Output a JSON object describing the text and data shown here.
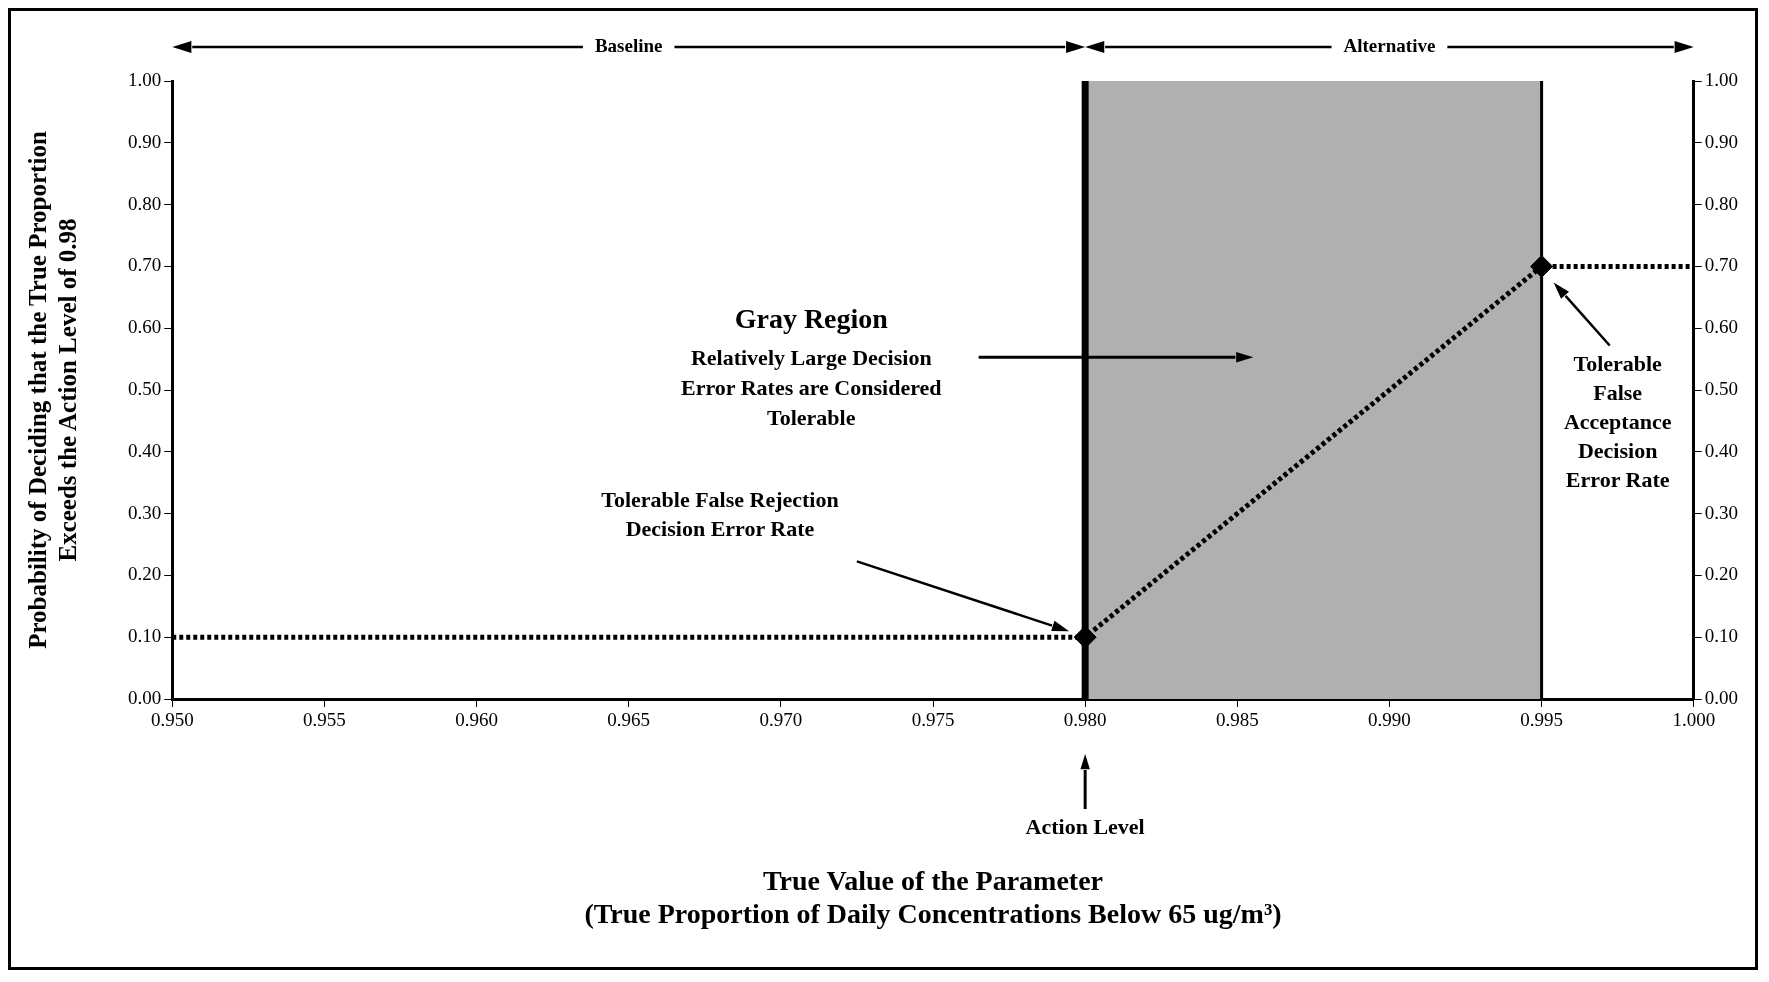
{
  "chart_data": {
    "type": "line",
    "xlabel": "True Value of the Parameter\n(True Proportion of Daily Concentrations Below 65 ug/m³)",
    "ylabel": "Probability of Deciding that the True Proportion\nExceeds the Action Level of 0.98",
    "series": [
      {
        "color": "#000000",
        "x": [
          0.95,
          0.98,
          0.995,
          1.0
        ],
        "values": [
          0.1,
          0.1,
          0.7,
          0.7
        ],
        "marker": "none",
        "line_style": "dotted"
      },
      {
        "type": "scatter",
        "color": "#000000",
        "x": [
          0.98,
          0.995
        ],
        "values": [
          0.1,
          0.7
        ],
        "marker": "diamond"
      }
    ],
    "xlim": [
      0.95,
      1.0
    ],
    "xticks": [
      {
        "value": 0.95,
        "label": "0.950"
      },
      {
        "value": 0.955,
        "label": "0.955"
      },
      {
        "value": 0.96,
        "label": "0.960"
      },
      {
        "value": 0.965,
        "label": "0.965"
      },
      {
        "value": 0.97,
        "label": "0.970"
      },
      {
        "value": 0.975,
        "label": "0.975"
      },
      {
        "value": 0.98,
        "label": "0.980"
      },
      {
        "value": 0.985,
        "label": "0.985"
      },
      {
        "value": 0.99,
        "label": "0.990"
      },
      {
        "value": 0.995,
        "label": "0.995"
      },
      {
        "value": 1.0,
        "label": "1.000"
      }
    ],
    "ylim": [
      0,
      1
    ],
    "yticks": [
      {
        "value": 0,
        "label": "0.00"
      },
      {
        "value": 0.1,
        "label": "0.10"
      },
      {
        "value": 0.2,
        "label": "0.20"
      },
      {
        "value": 0.3,
        "label": "0.30"
      },
      {
        "value": 0.4,
        "label": "0.40"
      },
      {
        "value": 0.5,
        "label": "0.50"
      },
      {
        "value": 0.6,
        "label": "0.60"
      },
      {
        "value": 0.7,
        "label": "0.70"
      },
      {
        "value": 0.8,
        "label": "0.80"
      },
      {
        "value": 0.9,
        "label": "0.90"
      },
      {
        "value": 1,
        "label": "1.00"
      }
    ],
    "y2lim": [
      0,
      1
    ],
    "y2ticks": [
      {
        "value": 0,
        "label": "0.00"
      },
      {
        "value": 0.1,
        "label": "0.10"
      },
      {
        "value": 0.2,
        "label": "0.20"
      },
      {
        "value": 0.3,
        "label": "0.30"
      },
      {
        "value": 0.4,
        "label": "0.40"
      },
      {
        "value": 0.5,
        "label": "0.50"
      },
      {
        "value": 0.6,
        "label": "0.60"
      },
      {
        "value": 0.7,
        "label": "0.70"
      },
      {
        "value": 0.8,
        "label": "0.80"
      },
      {
        "value": 0.9,
        "label": "0.90"
      },
      {
        "value": 1,
        "label": "1.00"
      }
    ],
    "ref_lines": [
      {
        "axis": "x",
        "value": 0.98,
        "label": "Action Level",
        "color": "#000000"
      }
    ],
    "bands": [
      {
        "axis": "x",
        "from": 0.98,
        "to": 0.995,
        "color": "#b0b0b0"
      }
    ],
    "annotations": [
      "Baseline",
      "Alternative",
      "Gray Region",
      "Relatively Large Decision Error Rates are Considered Tolerable",
      "Tolerable False Rejection Decision Error Rate",
      "Tolerable False Acceptance Decision Error Rate"
    ],
    "legend": false
  }
}
